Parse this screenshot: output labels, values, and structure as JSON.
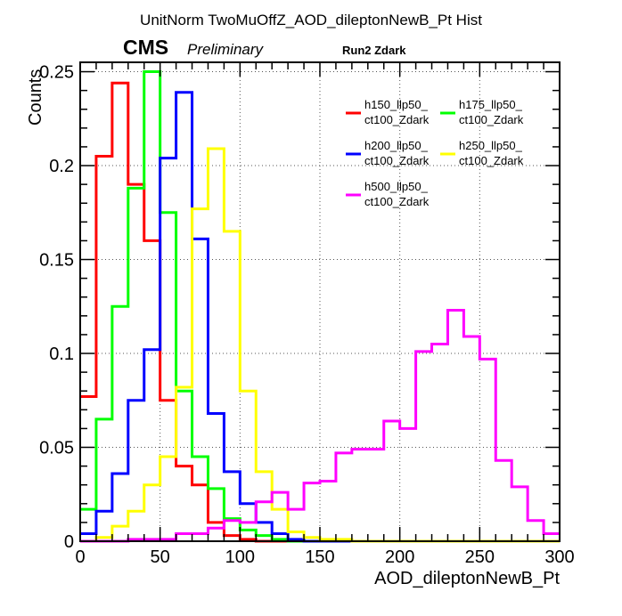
{
  "chart_data": {
    "type": "line",
    "title": "UnitNorm TwoMuOffZ_AOD_dileptonNewB_Pt Hist",
    "xlabel": "AOD_dileptonNewB_Pt",
    "ylabel": "Counts",
    "xlim": [
      0,
      300
    ],
    "ylim": [
      0,
      0.255
    ],
    "xticks": [
      "0",
      "50",
      "100",
      "150",
      "200",
      "250",
      "300"
    ],
    "yticks": [
      "0",
      "0.05",
      "0.1",
      "0.15",
      "0.2",
      "0.25"
    ],
    "grid": true,
    "legend_position": "top-right",
    "cms_label": "CMS",
    "preliminary_label": "Preliminary",
    "run_label": "Run2 Zdark",
    "bin_width": 10,
    "series": [
      {
        "name": "h150_llp50_ct100_Zdark",
        "legend_lines": [
          "h150_llp50_",
          "ct100_Zdark"
        ],
        "color": "#ff0000",
        "values": [
          0.077,
          0.205,
          0.244,
          0.19,
          0.16,
          0.075,
          0.04,
          0.03,
          0.01,
          0.003,
          0.001,
          0,
          0,
          0,
          0,
          0,
          0,
          0,
          0,
          0,
          0,
          0,
          0,
          0,
          0,
          0,
          0,
          0,
          0,
          0
        ]
      },
      {
        "name": "h175_llp50_ct100_Zdark",
        "legend_lines": [
          "h175_llp50_",
          "ct100_Zdark"
        ],
        "color": "#00ff00",
        "values": [
          0.017,
          0.065,
          0.125,
          0.188,
          0.25,
          0.175,
          0.08,
          0.045,
          0.028,
          0.012,
          0.006,
          0.003,
          0.001,
          0,
          0,
          0,
          0,
          0,
          0,
          0,
          0,
          0,
          0,
          0,
          0,
          0,
          0,
          0,
          0,
          0
        ]
      },
      {
        "name": "h200_llp50_ct100_Zdark",
        "legend_lines": [
          "h200_llp50_",
          "ct100_Zdark"
        ],
        "color": "#0000ff",
        "values": [
          0.004,
          0.016,
          0.036,
          0.075,
          0.102,
          0.204,
          0.239,
          0.161,
          0.068,
          0.037,
          0.02,
          0.01,
          0.004,
          0.001,
          0,
          0,
          0,
          0,
          0,
          0,
          0,
          0,
          0,
          0,
          0,
          0,
          0,
          0,
          0,
          0
        ]
      },
      {
        "name": "h250_llp50_ct100_Zdark",
        "legend_lines": [
          "h250_llp50_",
          "ct100_Zdark"
        ],
        "color": "#ffff00",
        "values": [
          0.0,
          0.002,
          0.008,
          0.016,
          0.03,
          0.045,
          0.082,
          0.177,
          0.209,
          0.165,
          0.08,
          0.037,
          0.017,
          0.005,
          0.002,
          0.001,
          0.001,
          0,
          0,
          0,
          0,
          0,
          0,
          0,
          0,
          0,
          0,
          0,
          0,
          0
        ]
      },
      {
        "name": "h500_llp50_ct100_Zdark",
        "legend_lines": [
          "h500_llp50_",
          "ct100_Zdark"
        ],
        "color": "#ff00ff",
        "values": [
          0.0,
          0.0,
          0.0,
          0.001,
          0.001,
          0.001,
          0.004,
          0.004,
          0.007,
          0.011,
          0.01,
          0.021,
          0.026,
          0.017,
          0.031,
          0.032,
          0.047,
          0.049,
          0.049,
          0.064,
          0.06,
          0.101,
          0.105,
          0.123,
          0.109,
          0.097,
          0.043,
          0.029,
          0.011,
          0.004
        ]
      }
    ]
  }
}
